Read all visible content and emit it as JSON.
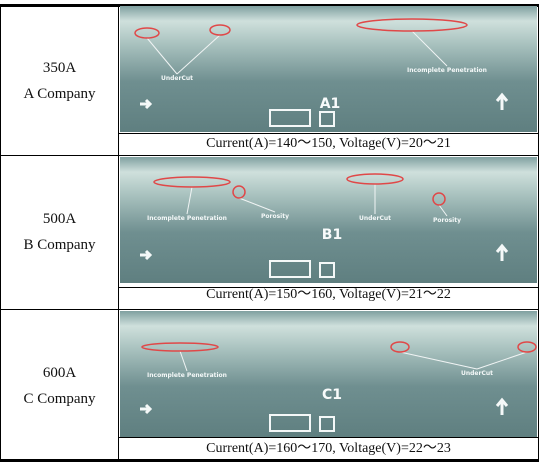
{
  "table": {
    "rows": [
      {
        "label": [
          "350A",
          "A Company"
        ],
        "image": {
          "id": "A1",
          "annotations": [
            "UnderCut",
            "Incomplete Penetration"
          ]
        },
        "caption": "Current(A)=140～150, Voltage(V)=20～21"
      },
      {
        "label": [
          "500A",
          "B Company"
        ],
        "image": {
          "id": "B1",
          "annotations": [
            "Incomplete Penetration",
            "Porosity",
            "UnderCut",
            "Porosity"
          ]
        },
        "caption": "Current(A)=150～160, Voltage(V)=21～22"
      },
      {
        "label": [
          "600A",
          "C Company"
        ],
        "image": {
          "id": "C1",
          "annotations": [
            "Incomplete Penetration",
            "UnderCut"
          ]
        },
        "caption": "Current(A)=160～170, Voltage(V)=22～23"
      }
    ]
  }
}
